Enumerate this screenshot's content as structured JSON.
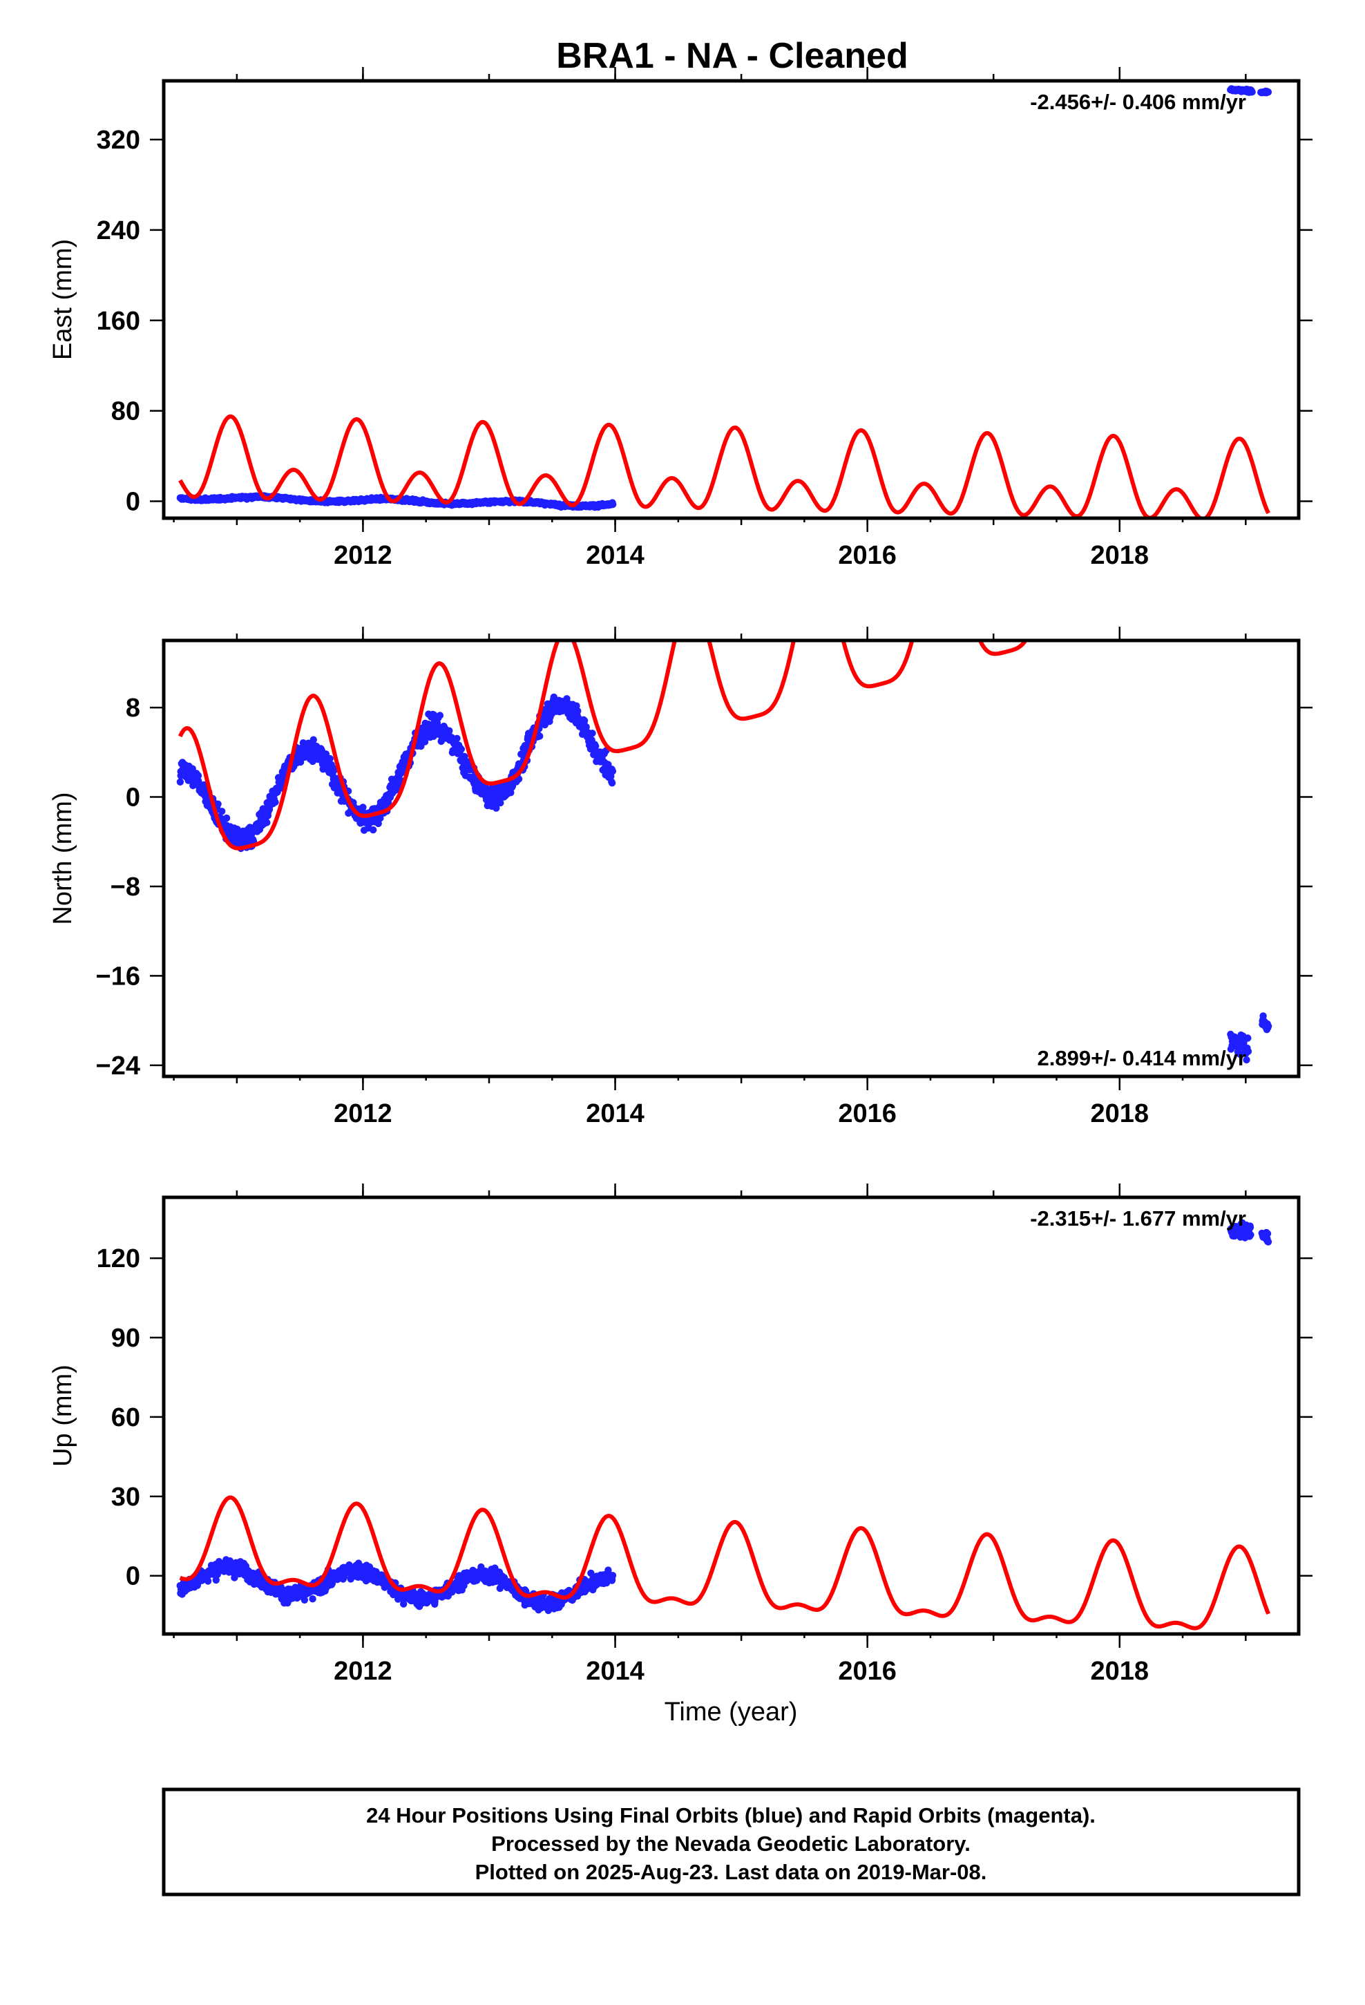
{
  "figure": {
    "title": "BRA1  - NA - Cleaned",
    "xlabel": "Time (year)",
    "caption": [
      "24 Hour Positions Using Final Orbits (blue) and Rapid Orbits (magenta).",
      "Processed by the Nevada Geodetic Laboratory.",
      "Plotted on 2025-Aug-23. Last data on 2019-Mar-08."
    ]
  },
  "colors": {
    "points": "#1f1fff",
    "model": "#ff0000",
    "frame": "#000000"
  },
  "chart_data": [
    {
      "type": "scatter",
      "component": "east",
      "ylabel": "East (mm)",
      "rate_label": "-2.456+/- 0.406 mm/yr",
      "rate_position": "top-right",
      "xlim": [
        2010.42,
        2019.42
      ],
      "ylim": [
        -15,
        372
      ],
      "xticks": [
        2012,
        2014,
        2016,
        2018
      ],
      "yticks": [
        0,
        80,
        160,
        240,
        320
      ],
      "data_segments": [
        {
          "from": 2010.55,
          "to": 2013.98,
          "trend": [
            3.5,
            -3.0
          ],
          "season": {
            "amp": 1.6,
            "phase": 0.2
          },
          "noise": 1.4
        },
        {
          "from": 2018.88,
          "to": 2019.05,
          "trend": [
            364,
            363
          ],
          "season": {
            "amp": 0,
            "phase": 0
          },
          "noise": 1.2
        },
        {
          "from": 2019.12,
          "to": 2019.18,
          "trend": [
            362,
            362
          ],
          "season": {
            "amp": 0,
            "phase": 0
          },
          "noise": 1.0
        }
      ],
      "model": {
        "x_range": [
          2010.55,
          2019.18
        ],
        "offset": 30.0,
        "rate": -2.456,
        "annual": {
          "amp": 23.0,
          "peak": 0.95
        },
        "semiannual": {
          "amp": 23.0,
          "peak": 0.95
        }
      }
    },
    {
      "type": "scatter",
      "component": "north",
      "ylabel": "North (mm)",
      "rate_label": "2.899+/- 0.414 mm/yr",
      "rate_position": "bottom-right",
      "xlim": [
        2010.42,
        2019.42
      ],
      "ylim": [
        -25,
        14
      ],
      "xticks": [
        2012,
        2014,
        2016,
        2018
      ],
      "yticks": [
        -24,
        -16,
        -8,
        0,
        8
      ],
      "data_segments": [
        {
          "from": 2010.55,
          "to": 2013.98,
          "trend": [
            -1.2,
            5.5
          ],
          "season": {
            "amp": 3.6,
            "peak": 0.55
          },
          "noise": 1.1
        },
        {
          "from": 2018.88,
          "to": 2019.02,
          "trend": [
            -22.0,
            -22.3
          ],
          "season": {
            "amp": 0,
            "peak": 0
          },
          "noise": 1.1
        },
        {
          "from": 2019.13,
          "to": 2019.18,
          "trend": [
            -20.0,
            -20.5
          ],
          "season": {
            "amp": 0,
            "peak": 0
          },
          "noise": 0.6
        }
      ],
      "model": {
        "x_range": [
          2010.55,
          2019.18
        ],
        "offset": -1.5,
        "rate": 2.899,
        "annual": {
          "amp": 6.0,
          "peak": 0.6
        },
        "semiannual": {
          "amp": 1.5,
          "peak": 0.1
        }
      }
    },
    {
      "type": "scatter",
      "component": "up",
      "ylabel": "Up (mm)",
      "rate_label": "-2.315+/- 1.677 mm/yr",
      "rate_position": "top-right",
      "xlim": [
        2010.42,
        2019.42
      ],
      "ylim": [
        -22,
        143
      ],
      "xticks": [
        2012,
        2014,
        2016,
        2018
      ],
      "yticks": [
        0,
        30,
        60,
        90,
        120
      ],
      "data_segments": [
        {
          "from": 2010.55,
          "to": 2013.98,
          "trend": [
            -1.0,
            -6.0
          ],
          "season": {
            "amp": 5.0,
            "peak": 0.95
          },
          "noise": 3.2
        },
        {
          "from": 2018.88,
          "to": 2019.04,
          "trend": [
            131,
            130
          ],
          "season": {
            "amp": 0,
            "peak": 0
          },
          "noise": 3.0
        },
        {
          "from": 2019.13,
          "to": 2019.18,
          "trend": [
            129,
            128
          ],
          "season": {
            "amp": 0,
            "peak": 0
          },
          "noise": 2.0
        }
      ],
      "model": {
        "x_range": [
          2010.55,
          2019.18
        ],
        "offset": 9.5,
        "rate": -2.315,
        "annual": {
          "amp": 15.0,
          "peak": 0.95
        },
        "semiannual": {
          "amp": 6.0,
          "peak": 0.45
        }
      }
    }
  ]
}
